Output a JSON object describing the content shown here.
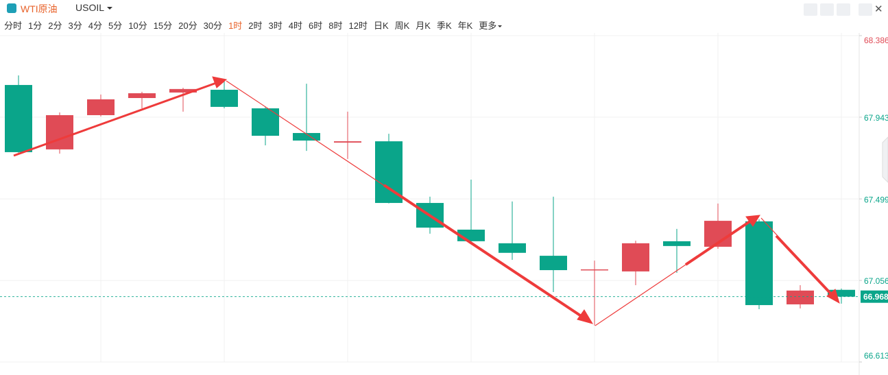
{
  "toolbar": {
    "symbol_name": "WTI原油",
    "symbol": "USOIL",
    "timeframes": [
      "分时",
      "1分",
      "2分",
      "3分",
      "4分",
      "5分",
      "10分",
      "15分",
      "20分",
      "30分",
      "1时",
      "2时",
      "3时",
      "4时",
      "6时",
      "8时",
      "12时",
      "日K",
      "周K",
      "月K",
      "季K",
      "年K",
      "更多"
    ],
    "active_timeframe": 10
  },
  "chart_data": {
    "type": "candlestick",
    "categories": [
      null,
      null,
      null,
      null,
      null,
      null,
      null,
      null,
      null,
      null,
      null,
      null,
      null,
      null,
      null,
      null,
      null,
      null,
      null,
      null,
      null
    ],
    "open": [
      68.118,
      67.768,
      67.954,
      68.047,
      68.077,
      68.092,
      67.991,
      67.857,
      67.805,
      67.812,
      67.477,
      67.332,
      67.258,
      67.19,
      67.112,
      67.105,
      67.269,
      67.239,
      67.377,
      66.926,
      67.005
    ],
    "high": [
      68.17,
      67.969,
      68.066,
      68.081,
      68.103,
      68.148,
      67.999,
      68.125,
      67.973,
      67.853,
      67.511,
      67.604,
      67.485,
      67.511,
      67.164,
      67.272,
      67.336,
      67.474,
      67.388,
      67.03,
      67.012
    ],
    "low": [
      67.75,
      67.745,
      67.947,
      67.991,
      67.973,
      67.991,
      67.79,
      67.76,
      67.716,
      67.475,
      67.31,
      67.265,
      67.168,
      66.993,
      66.811,
      67.03,
      67.097,
      67.228,
      66.9,
      66.904,
      66.93
    ],
    "close": [
      67.753,
      67.954,
      68.04,
      68.073,
      68.096,
      67.999,
      67.842,
      67.816,
      67.812,
      67.477,
      67.343,
      67.269,
      67.206,
      67.112,
      67.116,
      67.258,
      67.243,
      67.38,
      66.922,
      67.001,
      66.968
    ],
    "up_color": "#e04b56",
    "down_color": "#0aa58a",
    "ylim": [
      66.613,
      68.386
    ],
    "yticks": [
      68.386,
      67.943,
      67.499,
      67.056,
      66.613
    ],
    "ytick_colors": [
      "#e04b56",
      "#0aa58a",
      "#0aa58a",
      "#0aa58a",
      "#0aa58a"
    ],
    "last_price": 66.968,
    "grid": true
  }
}
